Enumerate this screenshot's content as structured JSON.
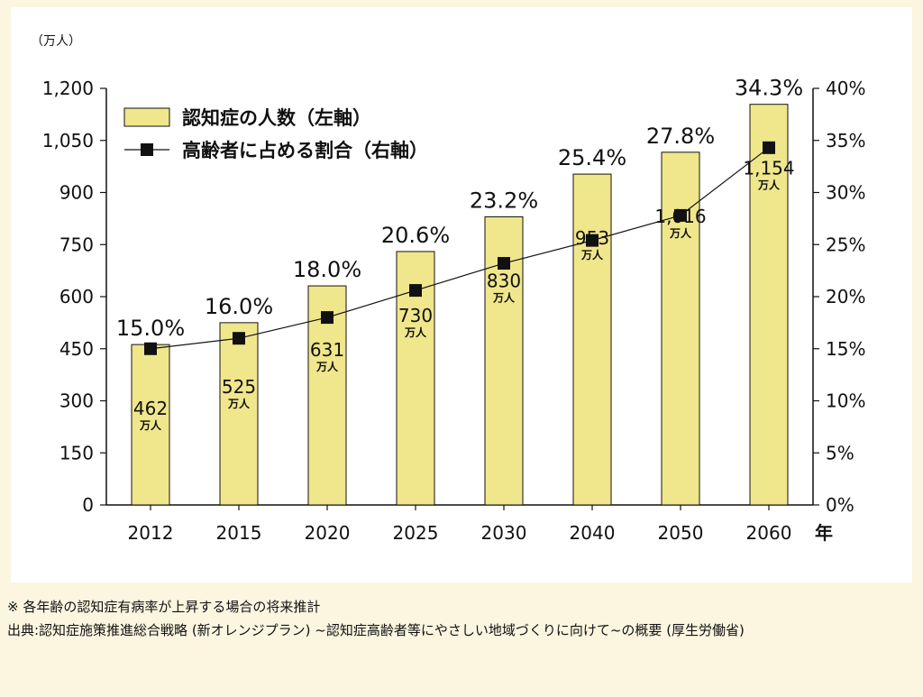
{
  "chart_data": {
    "type": "bar+line",
    "title": "",
    "y_left_unit": "（万人）",
    "x_unit": "年",
    "categories": [
      "2012",
      "2015",
      "2020",
      "2025",
      "2030",
      "2040",
      "2050",
      "2060"
    ],
    "y_left": {
      "min": 0,
      "max": 1200,
      "ticks": [
        "0",
        "150",
        "300",
        "450",
        "600",
        "750",
        "900",
        "1,050",
        "1,200"
      ]
    },
    "y_right": {
      "min": 0,
      "max": 40,
      "ticks": [
        "0%",
        "5%",
        "10%",
        "15%",
        "20%",
        "25%",
        "30%",
        "35%",
        "40%"
      ]
    },
    "series": [
      {
        "name": "認知症の人数（左軸）",
        "kind": "bar",
        "axis": "left",
        "color": "#f0e68c",
        "values": [
          462,
          525,
          631,
          730,
          830,
          953,
          1016,
          1154
        ],
        "labels": [
          "462",
          "525",
          "631",
          "730",
          "830",
          "953",
          "1,016",
          "1,154"
        ],
        "label_unit": "万人"
      },
      {
        "name": "高齢者に占める割合（右軸）",
        "kind": "line",
        "axis": "right",
        "color": "#111111",
        "values": [
          15.0,
          16.0,
          18.0,
          20.6,
          23.2,
          25.4,
          27.8,
          34.3
        ],
        "labels": [
          "15.0%",
          "16.0%",
          "18.0%",
          "20.6%",
          "23.2%",
          "25.4%",
          "27.8%",
          "34.3%"
        ]
      }
    ],
    "legend_position": "top-left",
    "grid": false
  },
  "notes": {
    "line1": "※ 各年齢の認知症有病率が上昇する場合の将来推計",
    "line2": "出典:認知症施策推進総合戦略 (新オレンジプラン) ~認知症高齢者等にやさしい地域づくりに向けて~の概要 (厚生労働省)"
  }
}
